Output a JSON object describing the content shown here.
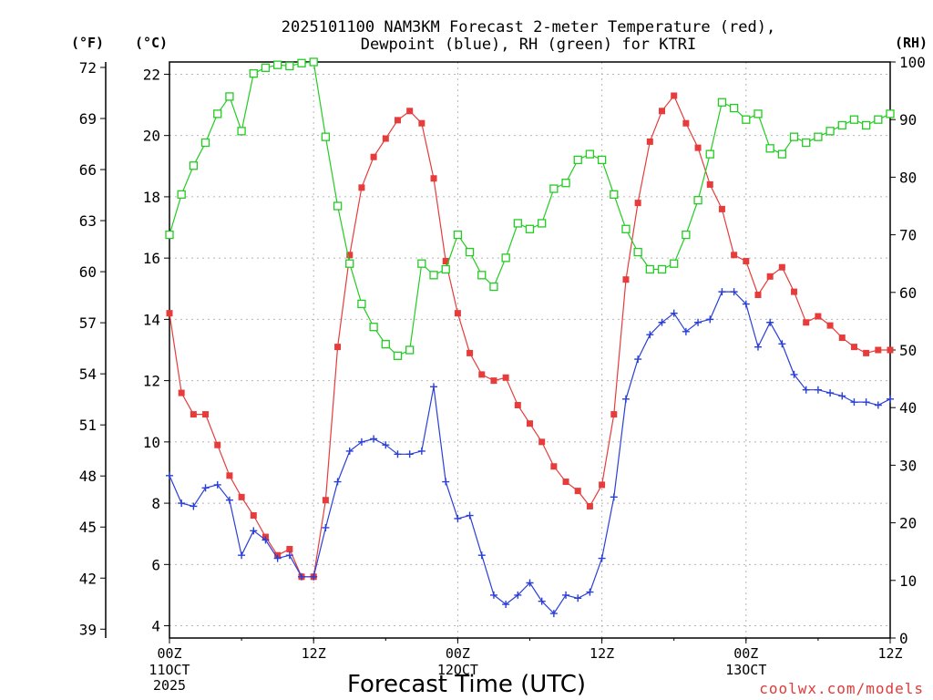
{
  "chart_data": {
    "type": "line",
    "title_line1": "2025101100 NAM3KM Forecast 2-meter Temperature (red),",
    "title_line2": "Dewpoint (blue), RH (green) for KTRI",
    "left_outer_unit": "(°F)",
    "left_inner_unit": "(°C)",
    "right_unit": "(RH)",
    "xlabel": "Forecast Time (UTC)",
    "credit": "coolwx.com/models",
    "x_range_hours": [
      0,
      60
    ],
    "y_celsius_range": [
      3.6,
      22.4
    ],
    "y_rh_range": [
      0,
      100
    ],
    "fahrenheit_ticks": [
      "72",
      "69",
      "66",
      "63",
      "60",
      "57",
      "54",
      "51",
      "48",
      "45",
      "42",
      "39"
    ],
    "celsius_ticks": [
      "22",
      "20",
      "18",
      "16",
      "14",
      "12",
      "10",
      "8",
      "6",
      "4"
    ],
    "rh_ticks": [
      "100",
      "90",
      "80",
      "70",
      "60",
      "50",
      "40",
      "30",
      "20",
      "10",
      "0"
    ],
    "x_ticks": [
      {
        "hour": 0,
        "line1": "00Z",
        "line2": "11OCT",
        "line3": "2025"
      },
      {
        "hour": 12,
        "line1": "12Z",
        "line2": "",
        "line3": ""
      },
      {
        "hour": 24,
        "line1": "00Z",
        "line2": "12OCT",
        "line3": ""
      },
      {
        "hour": 36,
        "line1": "12Z",
        "line2": "",
        "line3": ""
      },
      {
        "hour": 48,
        "line1": "00Z",
        "line2": "13OCT",
        "line3": ""
      },
      {
        "hour": 60,
        "line1": "12Z",
        "line2": "",
        "line3": ""
      }
    ],
    "hours": [
      0,
      1,
      2,
      3,
      4,
      5,
      6,
      7,
      8,
      9,
      10,
      11,
      12,
      13,
      14,
      15,
      16,
      17,
      18,
      19,
      20,
      21,
      22,
      23,
      24,
      25,
      26,
      27,
      28,
      29,
      30,
      31,
      32,
      33,
      34,
      35,
      36,
      37,
      38,
      39,
      40,
      41,
      42,
      43,
      44,
      45,
      46,
      47,
      48,
      49,
      50,
      51,
      52,
      53,
      54,
      55,
      56,
      57,
      58,
      59,
      60
    ],
    "series": [
      {
        "name": "Temperature",
        "unit": "C",
        "color": "#e63c3c",
        "marker": "filled-square",
        "values": [
          14.2,
          11.6,
          10.9,
          10.9,
          9.9,
          8.9,
          8.2,
          7.6,
          6.9,
          6.3,
          6.5,
          5.6,
          5.6,
          8.1,
          13.1,
          16.1,
          18.3,
          19.3,
          19.9,
          20.5,
          20.8,
          20.4,
          18.6,
          15.9,
          14.2,
          12.9,
          12.2,
          12.0,
          12.1,
          11.2,
          10.6,
          10.0,
          9.2,
          8.7,
          8.4,
          7.9,
          8.6,
          10.9,
          15.3,
          17.8,
          19.8,
          20.8,
          21.3,
          20.4,
          19.6,
          18.4,
          17.6,
          16.1,
          15.9,
          14.8,
          15.4,
          15.7,
          14.9,
          13.9,
          14.1,
          13.8,
          13.4,
          13.1,
          12.9,
          13.0,
          13.0
        ]
      },
      {
        "name": "Dewpoint",
        "unit": "C",
        "color": "#2a3fd6",
        "marker": "plus",
        "values": [
          8.9,
          8.0,
          7.9,
          8.5,
          8.6,
          8.1,
          6.3,
          7.1,
          6.8,
          6.2,
          6.3,
          5.6,
          5.6,
          7.2,
          8.7,
          9.7,
          10.0,
          10.1,
          9.9,
          9.6,
          9.6,
          9.7,
          11.8,
          8.7,
          7.5,
          7.6,
          6.3,
          5.0,
          4.7,
          5.0,
          5.4,
          4.8,
          4.4,
          5.0,
          4.9,
          5.1,
          6.2,
          8.2,
          11.4,
          12.7,
          13.5,
          13.9,
          14.2,
          13.6,
          13.9,
          14.0,
          14.9,
          14.9,
          14.5,
          13.1,
          13.9,
          13.2,
          12.2,
          11.7,
          11.7,
          11.6,
          11.5,
          11.3,
          11.3,
          11.2,
          11.4
        ]
      },
      {
        "name": "RH",
        "unit": "%",
        "color": "#22cc22",
        "marker": "open-square",
        "values": [
          70,
          77,
          82,
          86,
          91,
          94,
          88,
          98,
          99,
          99.5,
          99.3,
          99.8,
          100,
          87,
          75,
          65,
          58,
          54,
          51,
          49,
          50,
          65,
          63,
          64,
          70,
          67,
          63,
          61,
          66,
          72,
          71,
          72,
          78,
          79,
          83,
          84,
          83,
          77,
          71,
          67,
          64,
          64,
          65,
          70,
          76,
          84,
          93,
          92,
          90,
          91,
          85,
          84,
          87,
          86,
          87,
          88,
          89,
          90,
          89,
          90,
          91
        ]
      }
    ]
  }
}
